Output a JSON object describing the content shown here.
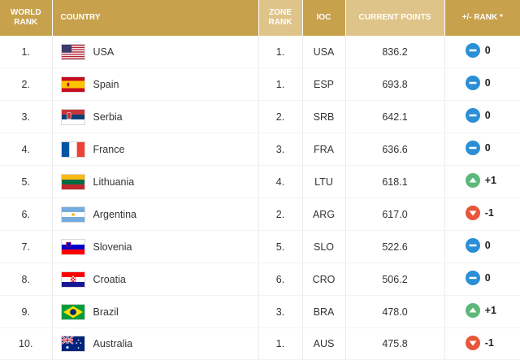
{
  "headers": {
    "world_rank": "WORLD RANK",
    "country": "COUNTRY",
    "zone_rank": "ZONE RANK",
    "ioc": "IOC",
    "current_points": "CURRENT POINTS",
    "change": "+/- RANK *"
  },
  "colors": {
    "header_dark": "#c7a14b",
    "header_light": "#dfc489",
    "neutral": "#2a8fd6",
    "up": "#5cb87a",
    "down": "#e8563a"
  },
  "rows": [
    {
      "rank": "1.",
      "country": "USA",
      "flag": "usa-flag",
      "zone": "1.",
      "ioc": "USA",
      "points": "836.2",
      "trend": "neutral",
      "change": "0"
    },
    {
      "rank": "2.",
      "country": "Spain",
      "flag": "spain-flag",
      "zone": "1.",
      "ioc": "ESP",
      "points": "693.8",
      "trend": "neutral",
      "change": "0"
    },
    {
      "rank": "3.",
      "country": "Serbia",
      "flag": "serbia-flag",
      "zone": "2.",
      "ioc": "SRB",
      "points": "642.1",
      "trend": "neutral",
      "change": "0"
    },
    {
      "rank": "4.",
      "country": "France",
      "flag": "france-flag",
      "zone": "3.",
      "ioc": "FRA",
      "points": "636.6",
      "trend": "neutral",
      "change": "0"
    },
    {
      "rank": "5.",
      "country": "Lithuania",
      "flag": "lithuania-flag",
      "zone": "4.",
      "ioc": "LTU",
      "points": "618.1",
      "trend": "up",
      "change": "+1"
    },
    {
      "rank": "6.",
      "country": "Argentina",
      "flag": "argentina-flag",
      "zone": "2.",
      "ioc": "ARG",
      "points": "617.0",
      "trend": "down",
      "change": "-1"
    },
    {
      "rank": "7.",
      "country": "Slovenia",
      "flag": "slovenia-flag",
      "zone": "5.",
      "ioc": "SLO",
      "points": "522.6",
      "trend": "neutral",
      "change": "0"
    },
    {
      "rank": "8.",
      "country": "Croatia",
      "flag": "croatia-flag",
      "zone": "6.",
      "ioc": "CRO",
      "points": "506.2",
      "trend": "neutral",
      "change": "0"
    },
    {
      "rank": "9.",
      "country": "Brazil",
      "flag": "brazil-flag",
      "zone": "3.",
      "ioc": "BRA",
      "points": "478.0",
      "trend": "up",
      "change": "+1"
    },
    {
      "rank": "10.",
      "country": "Australia",
      "flag": "australia-flag",
      "zone": "1.",
      "ioc": "AUS",
      "points": "475.8",
      "trend": "down",
      "change": "-1"
    }
  ]
}
